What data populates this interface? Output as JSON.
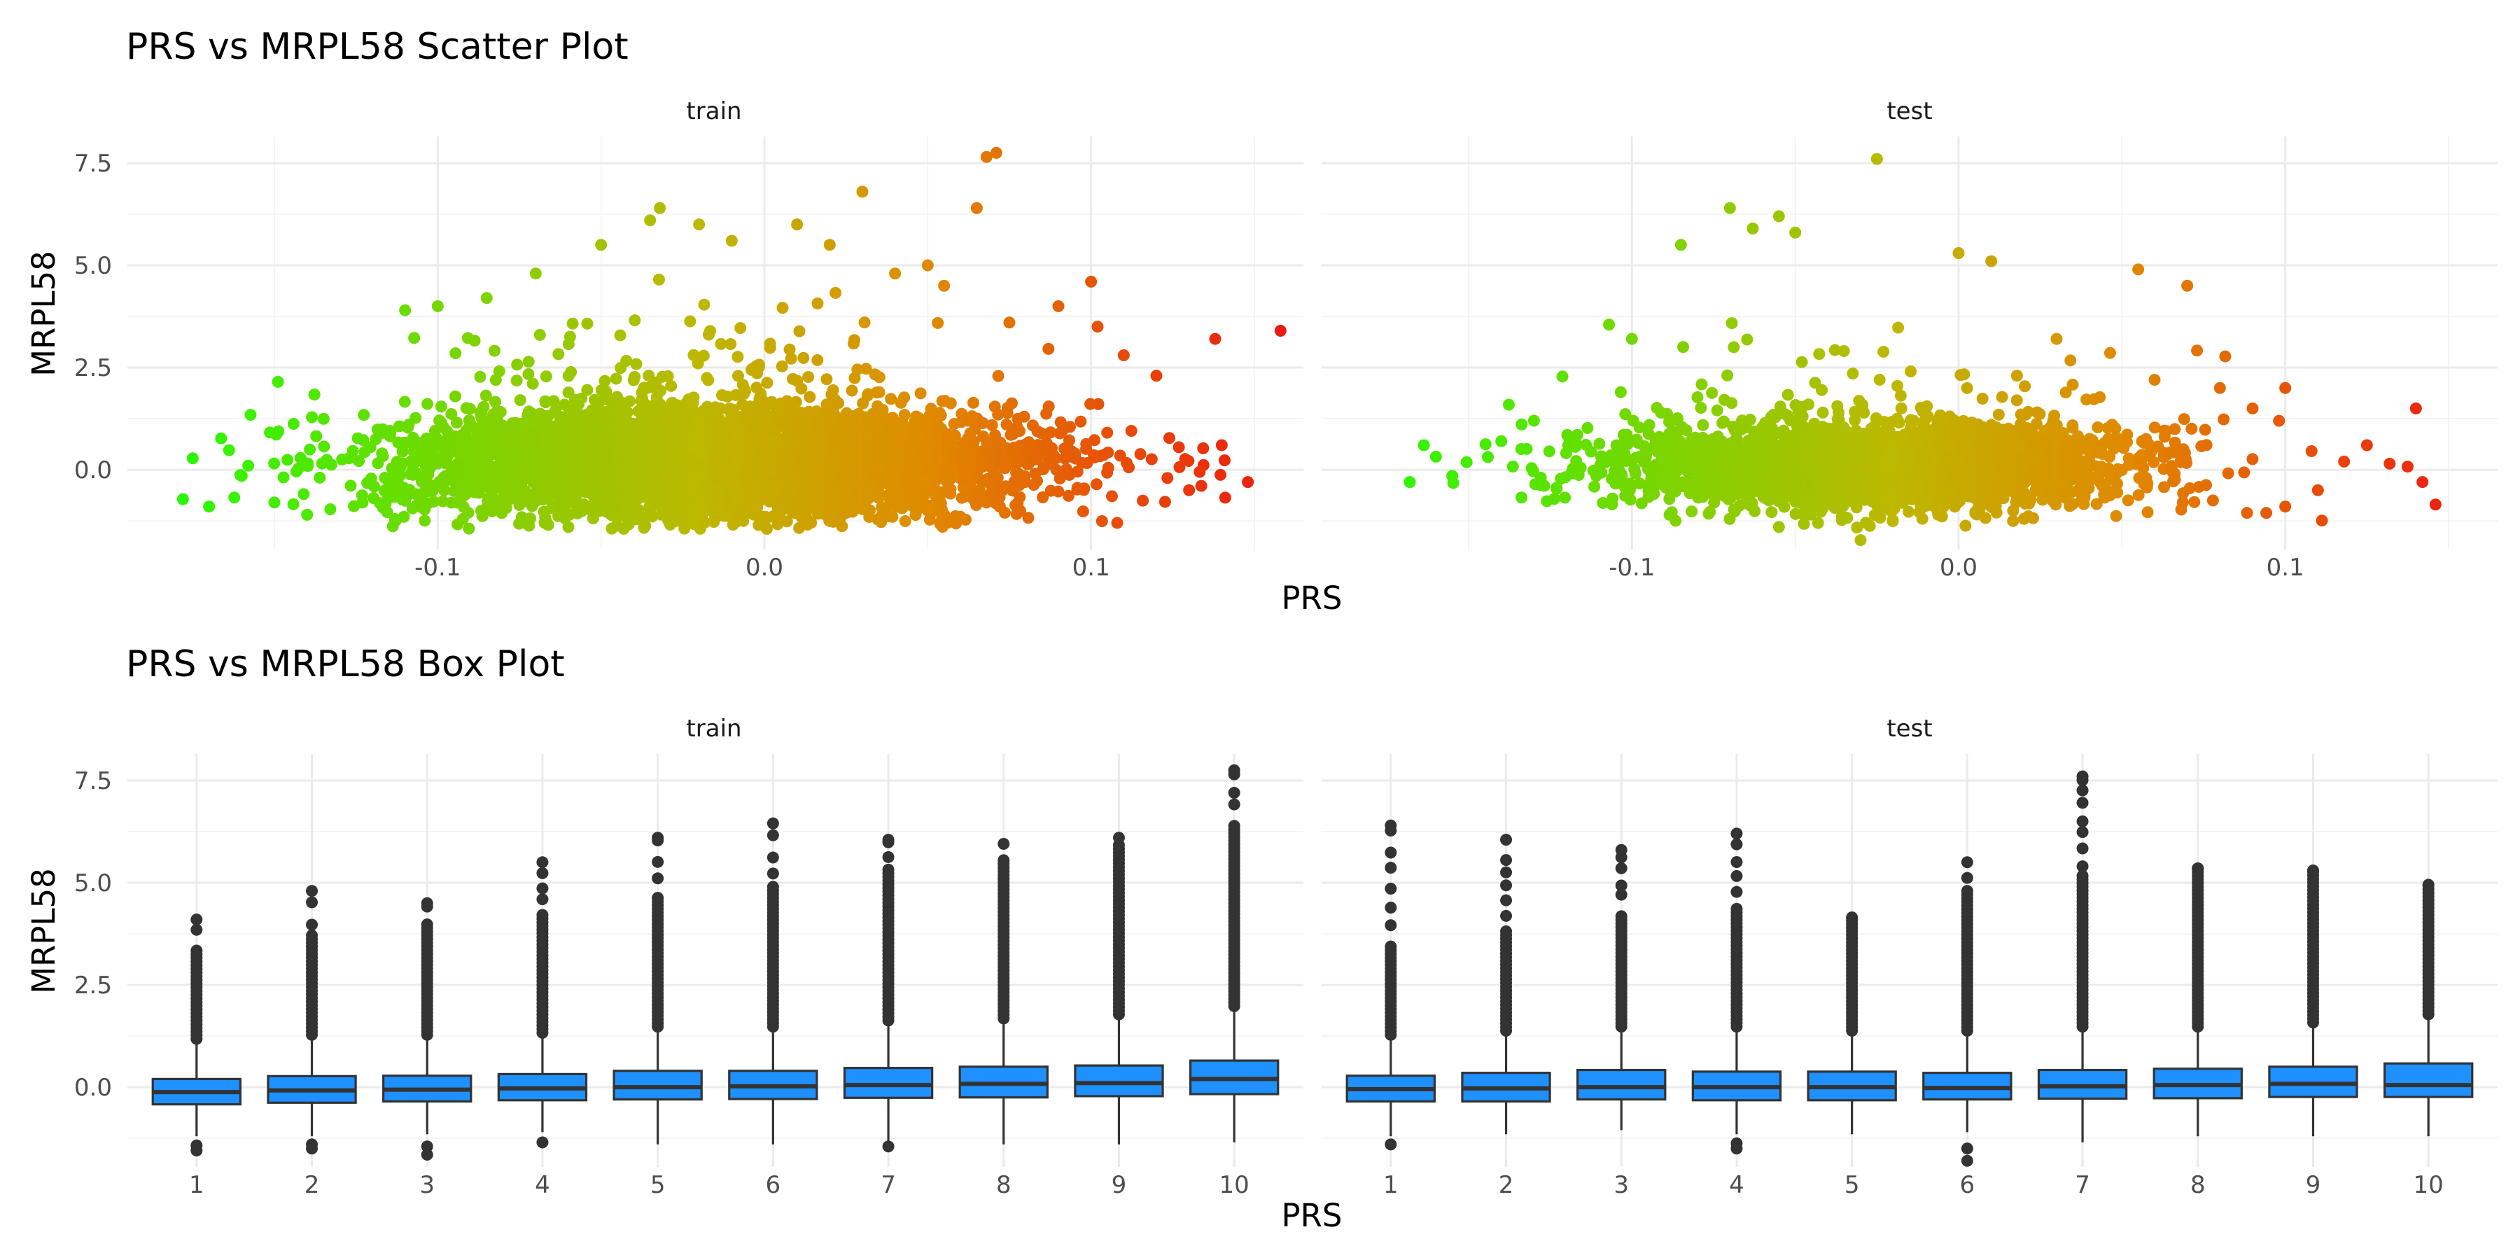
{
  "chart_data": [
    {
      "type": "scatter",
      "title": "PRS vs MRPL58 Scatter Plot",
      "xlabel": "PRS",
      "ylabel": "MRPL58",
      "facets": [
        "train",
        "test"
      ],
      "xlim": [
        -0.195,
        0.165
      ],
      "ylim": [
        -1.95,
        8.15
      ],
      "x_ticks": [
        -0.1,
        0.0,
        0.1
      ],
      "x_tick_labels": [
        "-0.1",
        "0.0",
        "0.1"
      ],
      "y_ticks": [
        0.0,
        2.5,
        5.0,
        7.5
      ],
      "y_tick_labels": [
        "0.0",
        "2.5",
        "5.0",
        "7.5"
      ],
      "grid": true,
      "color_gradient": {
        "low": "#1aff00",
        "mid": "#bdb800",
        "mid2": "#e08a00",
        "high": "#ee1111",
        "mapped_to": "PRS"
      },
      "cloud": {
        "train": {
          "x_mean": -0.015,
          "x_sd": 0.046,
          "y_mean": 0.15,
          "y_sd": 0.65,
          "n": 4800
        },
        "test": {
          "x_mean": -0.025,
          "x_sd": 0.04,
          "y_mean": 0.1,
          "y_sd": 0.55,
          "n": 2600
        }
      },
      "points": {
        "train": [
          [
            -0.175,
            0.28
          ],
          [
            -0.178,
            -0.72
          ],
          [
            -0.17,
            -0.9
          ],
          [
            -0.16,
            -0.15
          ],
          [
            -0.158,
            0.1
          ],
          [
            -0.15,
            -0.8
          ],
          [
            -0.11,
            3.9
          ],
          [
            -0.1,
            4.0
          ],
          [
            -0.085,
            4.2
          ],
          [
            -0.07,
            4.8
          ],
          [
            -0.05,
            5.5
          ],
          [
            -0.035,
            6.1
          ],
          [
            -0.032,
            6.4
          ],
          [
            -0.02,
            6.0
          ],
          [
            -0.01,
            5.6
          ],
          [
            0.01,
            6.0
          ],
          [
            0.02,
            5.5
          ],
          [
            0.03,
            6.8
          ],
          [
            0.04,
            4.8
          ],
          [
            0.05,
            5.0
          ],
          [
            0.055,
            4.5
          ],
          [
            0.065,
            6.4
          ],
          [
            0.068,
            7.65
          ],
          [
            0.071,
            7.75
          ],
          [
            0.075,
            3.6
          ],
          [
            0.09,
            4.0
          ],
          [
            0.1,
            4.6
          ],
          [
            0.102,
            3.5
          ],
          [
            0.11,
            2.8
          ],
          [
            0.12,
            2.3
          ],
          [
            0.138,
            3.2
          ],
          [
            0.14,
            0.6
          ],
          [
            0.148,
            -0.3
          ],
          [
            0.158,
            3.4
          ],
          [
            -0.14,
            -1.1
          ],
          [
            -0.06,
            -1.4
          ],
          [
            0.0,
            -1.3
          ],
          [
            0.05,
            -1.0
          ],
          [
            0.108,
            -1.3
          ],
          [
            0.13,
            -0.5
          ]
        ],
        "test": [
          [
            -0.168,
            -0.3
          ],
          [
            -0.16,
            0.32
          ],
          [
            -0.155,
            -0.15
          ],
          [
            -0.14,
            0.7
          ],
          [
            -0.13,
            1.2
          ],
          [
            -0.107,
            3.55
          ],
          [
            -0.1,
            3.2
          ],
          [
            -0.085,
            5.5
          ],
          [
            -0.07,
            6.4
          ],
          [
            -0.063,
            5.9
          ],
          [
            -0.055,
            6.2
          ],
          [
            -0.05,
            5.8
          ],
          [
            -0.025,
            7.6
          ],
          [
            0.0,
            5.3
          ],
          [
            0.01,
            5.1
          ],
          [
            0.03,
            3.2
          ],
          [
            0.055,
            4.9
          ],
          [
            0.06,
            2.2
          ],
          [
            0.07,
            4.5
          ],
          [
            0.08,
            2.0
          ],
          [
            0.09,
            1.5
          ],
          [
            0.1,
            2.0
          ],
          [
            0.11,
            -0.5
          ],
          [
            0.118,
            0.2
          ],
          [
            0.125,
            0.6
          ],
          [
            0.14,
            1.5
          ],
          [
            0.142,
            -0.3
          ],
          [
            0.146,
            -0.85
          ],
          [
            -0.055,
            -1.4
          ],
          [
            -0.03,
            -1.72
          ],
          [
            0.02,
            -1.2
          ],
          [
            0.1,
            -0.9
          ]
        ]
      }
    },
    {
      "type": "box",
      "title": "PRS vs MRPL58 Box Plot",
      "xlabel": "PRS",
      "ylabel": "MRPL58",
      "facets": [
        "train",
        "test"
      ],
      "categories": [
        "1",
        "2",
        "3",
        "4",
        "5",
        "6",
        "7",
        "8",
        "9",
        "10"
      ],
      "ylim": [
        -1.95,
        8.15
      ],
      "y_ticks": [
        0.0,
        2.5,
        5.0,
        7.5
      ],
      "y_tick_labels": [
        "0.0",
        "2.5",
        "5.0",
        "7.5"
      ],
      "grid": true,
      "box_fill": "#1e90ff",
      "box_stroke": "#333333",
      "boxes": {
        "train": [
          {
            "q1": -0.42,
            "median": -0.12,
            "q3": 0.2,
            "low": -1.2,
            "high": 1.1,
            "out_min": -1.55,
            "out_max": 4.1
          },
          {
            "q1": -0.38,
            "median": -0.08,
            "q3": 0.27,
            "low": -1.2,
            "high": 1.2,
            "out_min": -1.5,
            "out_max": 4.8
          },
          {
            "q1": -0.35,
            "median": -0.06,
            "q3": 0.28,
            "low": -1.15,
            "high": 1.2,
            "out_min": -1.65,
            "out_max": 4.5
          },
          {
            "q1": -0.32,
            "median": -0.03,
            "q3": 0.32,
            "low": -1.1,
            "high": 1.25,
            "out_min": -1.35,
            "out_max": 5.5
          },
          {
            "q1": -0.3,
            "median": 0.0,
            "q3": 0.4,
            "low": -1.4,
            "high": 1.4,
            "out_min": null,
            "out_max": 6.1
          },
          {
            "q1": -0.29,
            "median": 0.02,
            "q3": 0.4,
            "low": -1.4,
            "high": 1.4,
            "out_min": null,
            "out_max": 6.45
          },
          {
            "q1": -0.26,
            "median": 0.05,
            "q3": 0.47,
            "low": -1.35,
            "high": 1.55,
            "out_min": -1.45,
            "out_max": 6.05
          },
          {
            "q1": -0.25,
            "median": 0.08,
            "q3": 0.5,
            "low": -1.4,
            "high": 1.6,
            "out_min": null,
            "out_max": 5.95
          },
          {
            "q1": -0.22,
            "median": 0.1,
            "q3": 0.53,
            "low": -1.4,
            "high": 1.7,
            "out_min": null,
            "out_max": 6.1
          },
          {
            "q1": -0.17,
            "median": 0.2,
            "q3": 0.65,
            "low": -1.35,
            "high": 1.9,
            "out_min": null,
            "out_max": 7.75
          }
        ],
        "test": [
          {
            "q1": -0.35,
            "median": -0.05,
            "q3": 0.28,
            "low": -1.2,
            "high": 1.2,
            "out_min": -1.4,
            "out_max": 6.4
          },
          {
            "q1": -0.35,
            "median": -0.03,
            "q3": 0.35,
            "low": -1.15,
            "high": 1.3,
            "out_min": null,
            "out_max": 6.05
          },
          {
            "q1": -0.3,
            "median": 0.0,
            "q3": 0.42,
            "low": -1.05,
            "high": 1.4,
            "out_min": null,
            "out_max": 5.8
          },
          {
            "q1": -0.32,
            "median": 0.0,
            "q3": 0.38,
            "low": -1.15,
            "high": 1.4,
            "out_min": -1.5,
            "out_max": 6.2
          },
          {
            "q1": -0.32,
            "median": 0.0,
            "q3": 0.38,
            "low": -1.15,
            "high": 1.3,
            "out_min": null,
            "out_max": 4.15
          },
          {
            "q1": -0.3,
            "median": -0.02,
            "q3": 0.35,
            "low": -1.1,
            "high": 1.3,
            "out_min": -1.8,
            "out_max": 5.5
          },
          {
            "q1": -0.28,
            "median": 0.02,
            "q3": 0.42,
            "low": -1.35,
            "high": 1.4,
            "out_min": null,
            "out_max": 7.6
          },
          {
            "q1": -0.27,
            "median": 0.05,
            "q3": 0.45,
            "low": -1.2,
            "high": 1.4,
            "out_min": null,
            "out_max": 5.35
          },
          {
            "q1": -0.24,
            "median": 0.08,
            "q3": 0.5,
            "low": -1.2,
            "high": 1.5,
            "out_min": null,
            "out_max": 5.3
          },
          {
            "q1": -0.24,
            "median": 0.05,
            "q3": 0.58,
            "low": -1.2,
            "high": 1.7,
            "out_min": null,
            "out_max": 4.95
          }
        ]
      }
    }
  ]
}
